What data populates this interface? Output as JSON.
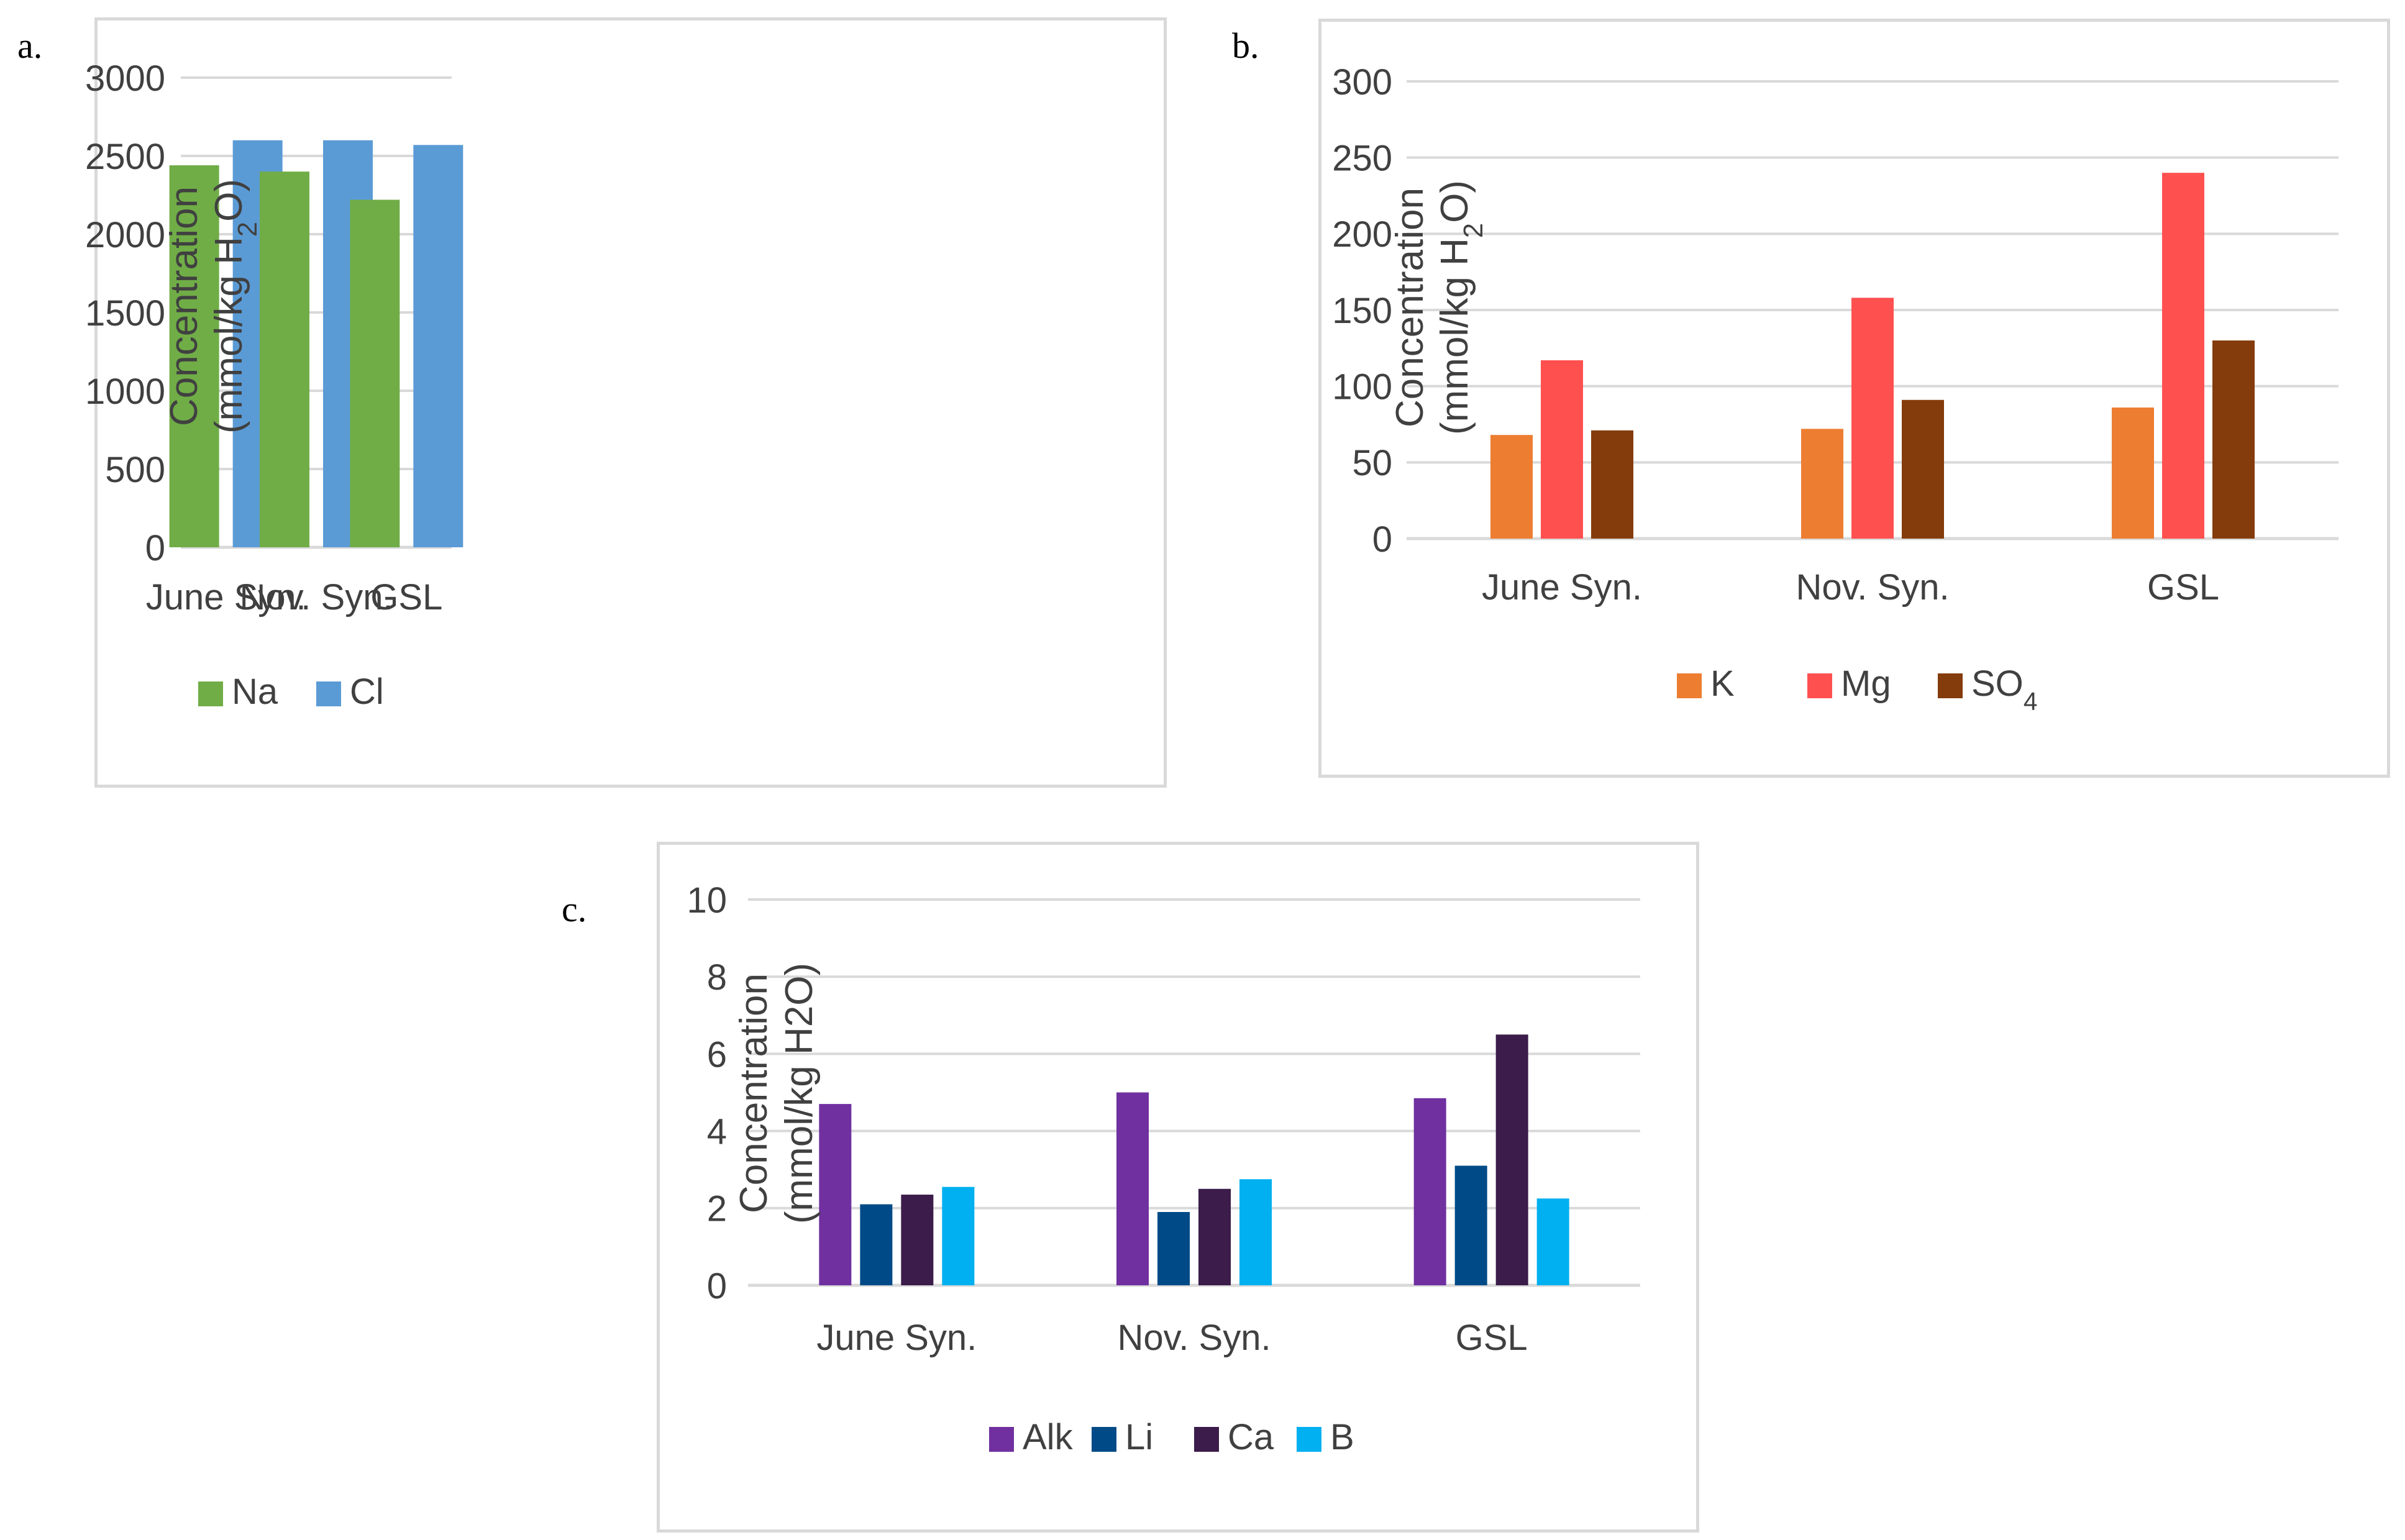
{
  "figure": {
    "panels": [
      "a.",
      "b.",
      "c."
    ]
  },
  "colors": {
    "Na": "#70ad47",
    "Cl": "#5b9bd5",
    "K": "#ed7d31",
    "Mg": "#ff5050",
    "SO4": "#843c0c",
    "Alk": "#7030a0",
    "Li": "#004b87",
    "Ca": "#3b1c4a",
    "B": "#00b0f0",
    "grid": "#d9d9d9",
    "axis": "#404040"
  },
  "chart_data": [
    {
      "type": "bar",
      "panel": "a.",
      "title": "",
      "ylabel_line1": "Concentration",
      "ylabel_line2_prefix": "(mmol/kg H",
      "ylabel_sub": "2",
      "ylabel_line2_suffix": "O)",
      "categories": [
        "June Syn.",
        "Nov. Syn.",
        "GSL"
      ],
      "series": [
        {
          "name": "Na",
          "values": [
            2440,
            2400,
            2220
          ]
        },
        {
          "name": "Cl",
          "values": [
            2600,
            2600,
            2570
          ]
        }
      ],
      "ylim": [
        0,
        3000
      ],
      "yticks": [
        "0",
        "500",
        "1000",
        "1500",
        "2000",
        "2500",
        "3000"
      ],
      "legend": [
        {
          "label": "Na"
        },
        {
          "label": "Cl"
        }
      ],
      "legend_position": "bottom"
    },
    {
      "type": "bar",
      "panel": "b.",
      "title": "",
      "ylabel_line1": "Concentration",
      "ylabel_line2_prefix": "(mmol/kg H",
      "ylabel_sub": "2",
      "ylabel_line2_suffix": "O)",
      "categories": [
        "June Syn.",
        "Nov. Syn.",
        "GSL"
      ],
      "series": [
        {
          "name": "K",
          "values": [
            68,
            72,
            86
          ]
        },
        {
          "name": "Mg",
          "values": [
            117,
            158,
            240
          ]
        },
        {
          "name": "SO4",
          "values": [
            71,
            91,
            130
          ]
        }
      ],
      "ylim": [
        0,
        300
      ],
      "yticks": [
        "0",
        "50",
        "100",
        "150",
        "200",
        "250",
        "300"
      ],
      "legend": [
        {
          "label": "K"
        },
        {
          "label": "Mg"
        },
        {
          "label": "SO",
          "sub": "4"
        }
      ],
      "legend_position": "bottom"
    },
    {
      "type": "bar",
      "panel": "c.",
      "title": "",
      "ylabel_line1": "Concentration",
      "ylabel_line2_prefix": "(mmol/kg H2O)",
      "ylabel_sub": "",
      "ylabel_line2_suffix": "",
      "categories": [
        "June Syn.",
        "Nov. Syn.",
        "GSL"
      ],
      "series": [
        {
          "name": "Alk",
          "values": [
            4.7,
            5.0,
            4.85
          ]
        },
        {
          "name": "Li",
          "values": [
            2.1,
            1.9,
            3.1
          ]
        },
        {
          "name": "Ca",
          "values": [
            2.35,
            2.5,
            6.5
          ]
        },
        {
          "name": "B",
          "values": [
            2.55,
            2.75,
            2.25
          ]
        }
      ],
      "ylim": [
        0,
        10
      ],
      "yticks": [
        "0",
        "2",
        "4",
        "6",
        "8",
        "10"
      ],
      "legend": [
        {
          "label": "Alk"
        },
        {
          "label": "Li"
        },
        {
          "label": "Ca"
        },
        {
          "label": "B"
        }
      ],
      "legend_position": "bottom"
    }
  ]
}
